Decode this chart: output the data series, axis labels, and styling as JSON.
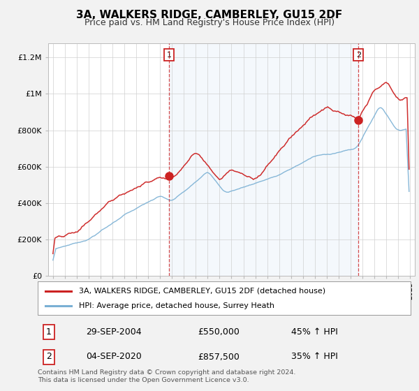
{
  "title": "3A, WALKERS RIDGE, CAMBERLEY, GU15 2DF",
  "subtitle": "Price paid vs. HM Land Registry's House Price Index (HPI)",
  "background_color": "#f2f2f2",
  "plot_background": "#ffffff",
  "shaded_region_color": "#ddeeff",
  "red_label": "3A, WALKERS RIDGE, CAMBERLEY, GU15 2DF (detached house)",
  "blue_label": "HPI: Average price, detached house, Surrey Heath",
  "annotation1": {
    "num": "1",
    "date": "29-SEP-2004",
    "price": "£550,000",
    "pct": "45% ↑ HPI",
    "x_year": 2004.75,
    "y_val": 550000
  },
  "annotation2": {
    "num": "2",
    "date": "04-SEP-2020",
    "price": "£857,500",
    "pct": "35% ↑ HPI",
    "x_year": 2020.67,
    "y_val": 857500
  },
  "ylim": [
    0,
    1280000
  ],
  "xlim_start": 1994.6,
  "xlim_end": 2025.4,
  "yticks": [
    0,
    200000,
    400000,
    600000,
    800000,
    1000000,
    1200000
  ],
  "ytick_labels": [
    "£0",
    "£200K",
    "£400K",
    "£600K",
    "£800K",
    "£1M",
    "£1.2M"
  ],
  "footer": "Contains HM Land Registry data © Crown copyright and database right 2024.\nThis data is licensed under the Open Government Licence v3.0.",
  "red_color": "#cc2222",
  "blue_color": "#7ab0d4",
  "dashed_color": "#cc2222",
  "title_fontsize": 11,
  "subtitle_fontsize": 9
}
